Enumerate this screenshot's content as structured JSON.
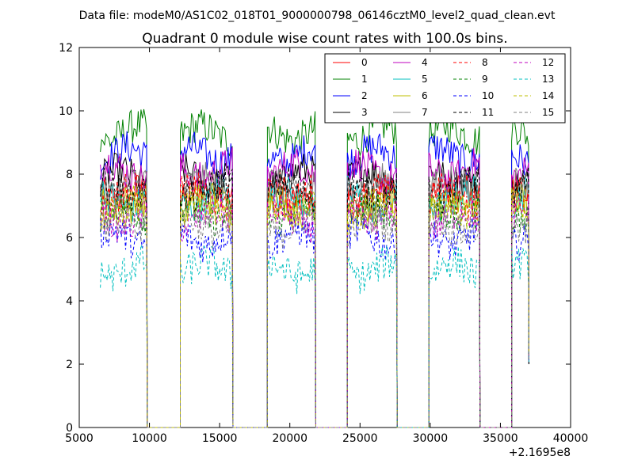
{
  "chart_data": {
    "type": "line",
    "supertitle": "Data file: modeM0/AS1C02_018T01_9000000798_06146cztM0_level2_quad_clean.evt",
    "title": "Quadrant 0 module wise count rates with 100.0s bins.",
    "xlabel": "",
    "ylabel": "",
    "x_offset_label": "+2.1695e8",
    "xlim": [
      5000,
      40000
    ],
    "ylim": [
      0,
      12
    ],
    "x_ticks": [
      5000,
      10000,
      15000,
      20000,
      25000,
      30000,
      35000,
      40000
    ],
    "y_ticks": [
      0,
      2,
      4,
      6,
      8,
      10,
      12
    ],
    "x_tick_labels": [
      "5000",
      "10000",
      "15000",
      "20000",
      "25000",
      "30000",
      "35000",
      "40000"
    ],
    "y_tick_labels": [
      "0",
      "2",
      "4",
      "6",
      "8",
      "10",
      "12"
    ],
    "grid": false,
    "legend_position": "top-right",
    "segments": [
      {
        "start": 6500,
        "end": 9800
      },
      {
        "start": 12200,
        "end": 15900
      },
      {
        "start": 18400,
        "end": 21800
      },
      {
        "start": 24100,
        "end": 27600
      },
      {
        "start": 29900,
        "end": 33500
      },
      {
        "start": 35800,
        "end": 37000
      }
    ],
    "gap_starts": [
      9800,
      15900,
      21800,
      27600,
      33500
    ],
    "gap_ends": [
      12200,
      18400,
      24100,
      29900,
      35800
    ],
    "series": [
      {
        "name": "0",
        "color": "#ff0000",
        "dashed": false,
        "level": 7.4
      },
      {
        "name": "1",
        "color": "#008000",
        "dashed": false,
        "level": 9.3
      },
      {
        "name": "2",
        "color": "#0000ff",
        "dashed": false,
        "level": 8.6
      },
      {
        "name": "3",
        "color": "#000000",
        "dashed": false,
        "level": 7.9
      },
      {
        "name": "4",
        "color": "#bf00bf",
        "dashed": false,
        "level": 8.1
      },
      {
        "name": "5",
        "color": "#00bfbf",
        "dashed": false,
        "level": 7.2
      },
      {
        "name": "6",
        "color": "#bfbf00",
        "dashed": false,
        "level": 7.0
      },
      {
        "name": "7",
        "color": "#808080",
        "dashed": false,
        "level": 7.6
      },
      {
        "name": "8",
        "color": "#ff0000",
        "dashed": true,
        "level": 7.3
      },
      {
        "name": "9",
        "color": "#008000",
        "dashed": true,
        "level": 6.8
      },
      {
        "name": "10",
        "color": "#0000ff",
        "dashed": true,
        "level": 6.0
      },
      {
        "name": "11",
        "color": "#000000",
        "dashed": true,
        "level": 7.5
      },
      {
        "name": "12",
        "color": "#bf00bf",
        "dashed": true,
        "level": 6.6
      },
      {
        "name": "13",
        "color": "#00bfbf",
        "dashed": true,
        "level": 5.0
      },
      {
        "name": "14",
        "color": "#bfbf00",
        "dashed": true,
        "level": 6.9
      },
      {
        "name": "15",
        "color": "#808080",
        "dashed": true,
        "level": 6.4
      }
    ]
  }
}
